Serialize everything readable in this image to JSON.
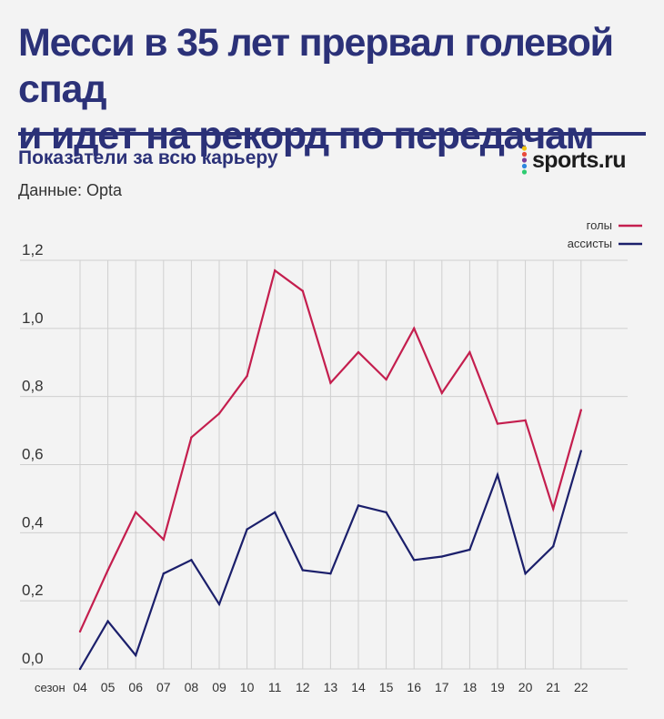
{
  "header": {
    "title_line1": "Месси в 35 лет прервал голевой спад",
    "title_line2": "и идет на рекорд по передачам",
    "subtitle": "Показатели за всю карьеру",
    "source": "Данные: Opta",
    "logo_text": "sports.ru"
  },
  "colors": {
    "title": "#2b3178",
    "goals": "#c41e4e",
    "assists": "#1b1f6b",
    "grid": "#cfcfcf",
    "logo_dots": [
      "#f2c40f",
      "#e94b3c",
      "#7d3c98",
      "#2e86de",
      "#2ecc71"
    ]
  },
  "chart_data": {
    "type": "line",
    "x_label": "сезон",
    "categories": [
      "04",
      "05",
      "06",
      "07",
      "08",
      "09",
      "10",
      "11",
      "12",
      "13",
      "14",
      "15",
      "16",
      "17",
      "18",
      "19",
      "20",
      "21",
      "22"
    ],
    "y_ticks": [
      "0,0",
      "0,2",
      "0,4",
      "0,6",
      "0,8",
      "1,0",
      "1,2"
    ],
    "ylim": [
      0,
      1.2
    ],
    "grid": true,
    "legend_placement": "top-right",
    "series": [
      {
        "name": "голы",
        "color": "#c41e4e",
        "values": [
          0.11,
          0.29,
          0.46,
          0.38,
          0.68,
          0.75,
          0.86,
          1.17,
          1.11,
          0.84,
          0.93,
          0.85,
          1.0,
          0.81,
          0.93,
          0.72,
          0.73,
          0.47,
          0.76
        ]
      },
      {
        "name": "ассисты",
        "color": "#1b1f6b",
        "values": [
          0.0,
          0.14,
          0.04,
          0.28,
          0.32,
          0.19,
          0.41,
          0.46,
          0.29,
          0.28,
          0.48,
          0.46,
          0.32,
          0.33,
          0.35,
          0.57,
          0.28,
          0.36,
          0.64
        ]
      }
    ]
  }
}
